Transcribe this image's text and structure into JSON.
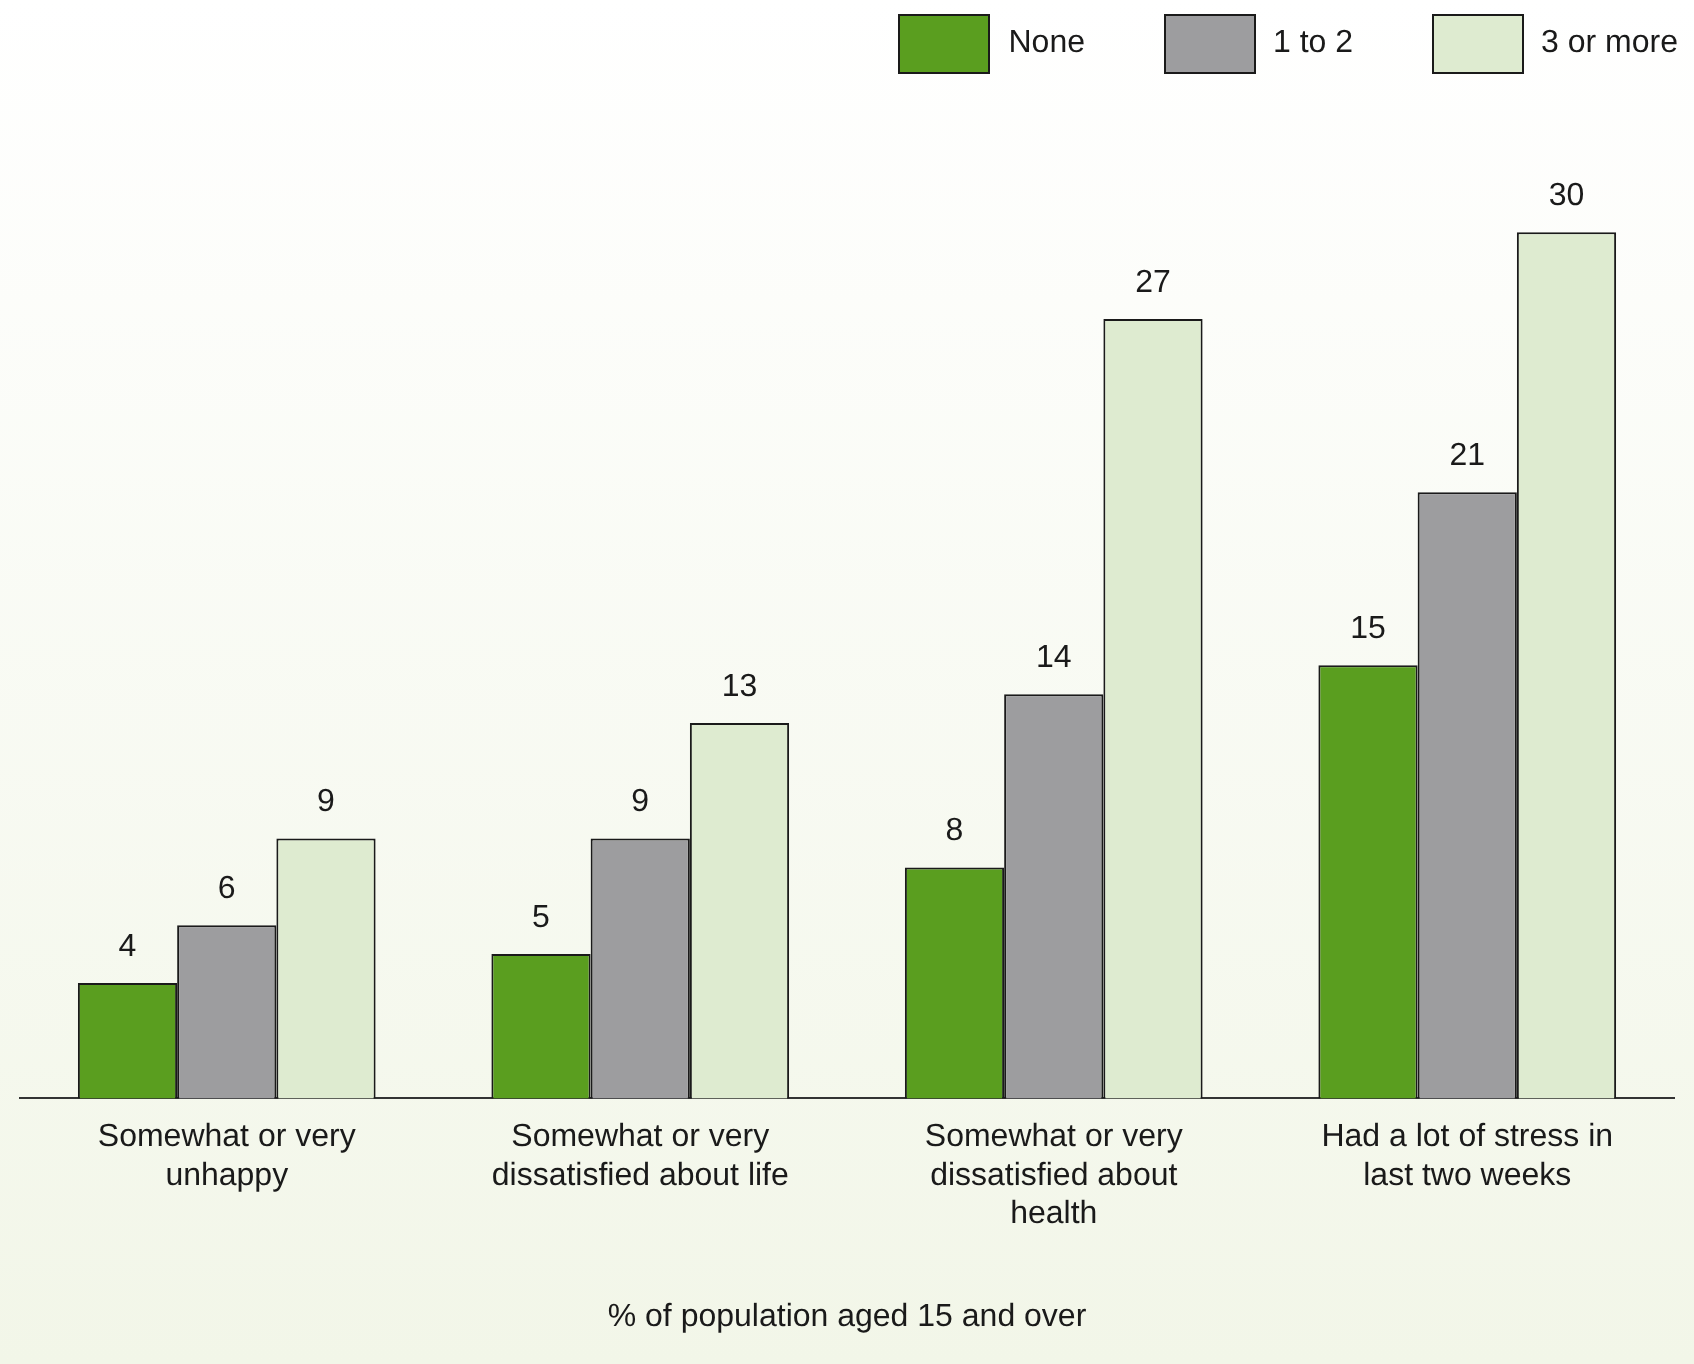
{
  "chart_data": {
    "type": "bar",
    "xlabel": "% of population aged 15 and over",
    "categories": [
      "Somewhat or very unhappy",
      "Somewhat or very dissatisfied about life",
      "Somewhat or very dissatisfied about health",
      "Had a lot of stress in last two weeks"
    ],
    "series": [
      {
        "name": "None",
        "color": "#5a9e1f",
        "values": [
          4,
          5,
          8,
          15
        ]
      },
      {
        "name": "1 to 2",
        "color": "#9d9d9f",
        "values": [
          6,
          9,
          14,
          21
        ]
      },
      {
        "name": "3 or more",
        "color": "#deebd0",
        "values": [
          9,
          13,
          27,
          30
        ]
      }
    ],
    "tick_labels": "x",
    "data_labels": true,
    "legend": "top right"
  }
}
